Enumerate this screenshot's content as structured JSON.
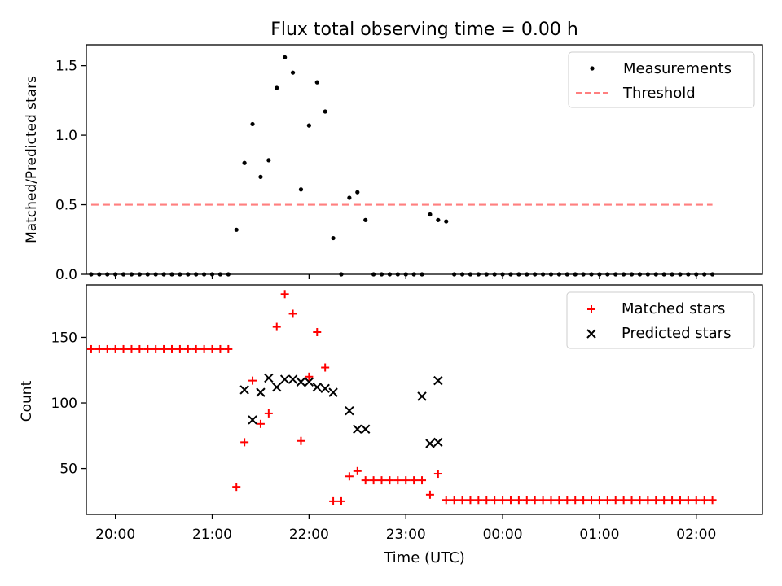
{
  "chart_data": {
    "title": "Flux total observing time = 0.00 h",
    "xlabel": "Time (UTC)",
    "x_ticks": [
      "20:00",
      "21:00",
      "22:00",
      "23:00",
      "00:00",
      "01:00",
      "02:00"
    ],
    "xlim": [
      "19:42",
      "02:41"
    ],
    "panels": [
      {
        "type": "scatter",
        "ylabel": "Matched/Predicted stars",
        "ylim": [
          0,
          1.65
        ],
        "y_ticks": [
          "0.0",
          "0.5",
          "1.0",
          "1.5"
        ],
        "legend_position": "top-right",
        "series": [
          {
            "name": "Measurements",
            "marker": "dot",
            "color": "#000000",
            "x": [
              "19:45",
              "19:50",
              "19:55",
              "20:00",
              "20:05",
              "20:10",
              "20:15",
              "20:20",
              "20:25",
              "20:30",
              "20:35",
              "20:40",
              "20:45",
              "20:50",
              "20:55",
              "21:00",
              "21:05",
              "21:10",
              "21:15",
              "21:20",
              "21:25",
              "21:30",
              "21:35",
              "21:40",
              "21:45",
              "21:50",
              "21:55",
              "22:00",
              "22:05",
              "22:10",
              "22:15",
              "22:20",
              "22:25",
              "22:30",
              "22:35",
              "22:40",
              "22:45",
              "22:50",
              "22:55",
              "23:00",
              "23:05",
              "23:10",
              "23:15",
              "23:20",
              "23:25",
              "23:30",
              "23:35",
              "23:40",
              "23:45",
              "23:50",
              "23:55",
              "00:00",
              "00:05",
              "00:10",
              "00:15",
              "00:20",
              "00:25",
              "00:30",
              "00:35",
              "00:40",
              "00:45",
              "00:50",
              "00:55",
              "01:00",
              "01:05",
              "01:10",
              "01:15",
              "01:20",
              "01:25",
              "01:30",
              "01:35",
              "01:40",
              "01:45",
              "01:50",
              "01:55",
              "02:00",
              "02:05",
              "02:10"
            ],
            "y": [
              0,
              0,
              0,
              0,
              0,
              0,
              0,
              0,
              0,
              0,
              0,
              0,
              0,
              0,
              0,
              0,
              0,
              0,
              0.32,
              0.8,
              1.08,
              0.7,
              0.82,
              1.34,
              1.56,
              1.45,
              0.61,
              1.07,
              1.38,
              1.17,
              0.26,
              0,
              0.55,
              0.59,
              0.39,
              0,
              0,
              0,
              0,
              0,
              0,
              0,
              0.43,
              0.39,
              0.38,
              0,
              0,
              0,
              0,
              0,
              0,
              0,
              0,
              0,
              0,
              0,
              0,
              0,
              0,
              0,
              0,
              0,
              0,
              0,
              0,
              0,
              0,
              0,
              0,
              0,
              0,
              0,
              0,
              0,
              0,
              0,
              0,
              0
            ]
          },
          {
            "name": "Threshold",
            "style": "dashed",
            "color": "#ff7f7f",
            "x": [
              "19:45",
              "02:10"
            ],
            "y": [
              0.5,
              0.5
            ]
          }
        ]
      },
      {
        "type": "scatter",
        "ylabel": "Count",
        "ylim": [
          15,
          190
        ],
        "y_ticks": [
          "50",
          "100",
          "150"
        ],
        "legend_position": "top-right",
        "series": [
          {
            "name": "Matched stars",
            "marker": "plus",
            "color": "#ff0000",
            "x": [
              "19:45",
              "19:50",
              "19:55",
              "20:00",
              "20:05",
              "20:10",
              "20:15",
              "20:20",
              "20:25",
              "20:30",
              "20:35",
              "20:40",
              "20:45",
              "20:50",
              "20:55",
              "21:00",
              "21:05",
              "21:10",
              "21:15",
              "21:20",
              "21:25",
              "21:30",
              "21:35",
              "21:40",
              "21:45",
              "21:50",
              "21:55",
              "22:00",
              "22:05",
              "22:10",
              "22:15",
              "22:20",
              "22:25",
              "22:30",
              "22:35",
              "22:40",
              "22:45",
              "22:50",
              "22:55",
              "23:00",
              "23:05",
              "23:10",
              "23:15",
              "23:20",
              "23:25",
              "23:30",
              "23:35",
              "23:40",
              "23:45",
              "23:50",
              "23:55",
              "00:00",
              "00:05",
              "00:10",
              "00:15",
              "00:20",
              "00:25",
              "00:30",
              "00:35",
              "00:40",
              "00:45",
              "00:50",
              "00:55",
              "01:00",
              "01:05",
              "01:10",
              "01:15",
              "01:20",
              "01:25",
              "01:30",
              "01:35",
              "01:40",
              "01:45",
              "01:50",
              "01:55",
              "02:00",
              "02:05",
              "02:10"
            ],
            "y": [
              141,
              141,
              141,
              141,
              141,
              141,
              141,
              141,
              141,
              141,
              141,
              141,
              141,
              141,
              141,
              141,
              141,
              141,
              36,
              70,
              117,
              84,
              92,
              158,
              183,
              168,
              71,
              120,
              154,
              127,
              25,
              25,
              44,
              48,
              41,
              41,
              41,
              41,
              41,
              41,
              41,
              41,
              30,
              46,
              26,
              26,
              26,
              26,
              26,
              26,
              26,
              26,
              26,
              26,
              26,
              26,
              26,
              26,
              26,
              26,
              26,
              26,
              26,
              26,
              26,
              26,
              26,
              26,
              26,
              26,
              26,
              26,
              26,
              26,
              26,
              26,
              26,
              26
            ]
          },
          {
            "name": "Predicted stars",
            "marker": "x",
            "color": "#000000",
            "x": [
              "21:20",
              "21:25",
              "21:30",
              "21:35",
              "21:40",
              "21:45",
              "21:50",
              "21:55",
              "22:00",
              "22:05",
              "22:10",
              "22:15",
              "22:25",
              "22:30",
              "22:35",
              "23:10",
              "23:15",
              "23:20"
            ],
            "y": [
              110,
              87,
              108,
              119,
              112,
              118,
              118,
              116,
              116,
              112,
              111,
              108,
              94,
              80,
              80,
              105,
              69,
              117
            ]
          }
        ],
        "extra_points": [
          {
            "series": "Predicted stars",
            "x": "23:20",
            "y": 70
          }
        ]
      }
    ]
  }
}
